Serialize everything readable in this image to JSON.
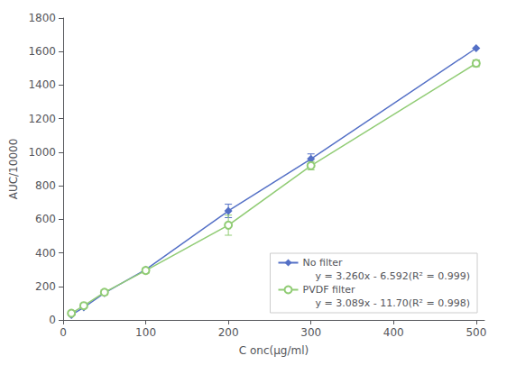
{
  "chart_data": {
    "type": "line",
    "xlabel": "C onc(μg/ml)",
    "ylabel": "AUC/10000",
    "x": [
      10,
      25,
      50,
      100,
      200,
      300,
      500
    ],
    "series": [
      {
        "name": "No filter",
        "values": [
          30,
          75,
          160,
          300,
          650,
          960,
          1620
        ],
        "yerr": [
          0,
          0,
          0,
          0,
          40,
          30,
          0
        ],
        "marker": "diamond",
        "annotation": "    y = 3.260x - 6.592(R² = 0.999)"
      },
      {
        "name": "PVDF filter",
        "values": [
          40,
          85,
          165,
          295,
          565,
          920,
          1530
        ],
        "yerr": [
          10,
          10,
          15,
          15,
          60,
          25,
          20
        ],
        "marker": "open_circle",
        "annotation": "    y = 3.089x - 11.70(R² = 0.998)"
      }
    ],
    "xlim": [
      0,
      510
    ],
    "xticks": [
      0,
      100,
      200,
      300,
      400,
      500
    ],
    "ylim": [
      0,
      1800
    ],
    "yticks": [
      0,
      200,
      400,
      600,
      800,
      1000,
      1200,
      1400,
      1600,
      1800
    ],
    "grid": false,
    "legend": "lower right"
  }
}
